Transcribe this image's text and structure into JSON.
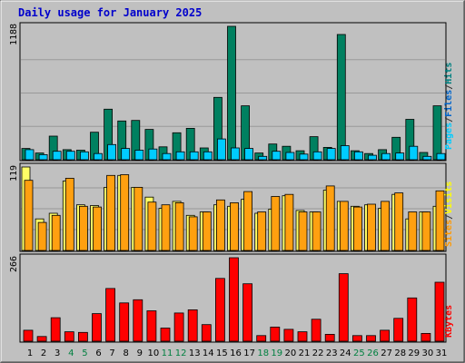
{
  "chart_data": [
    {
      "type": "bar",
      "title": "Daily usage for January 2025",
      "categories": [
        "1",
        "2",
        "3",
        "4",
        "5",
        "6",
        "7",
        "8",
        "9",
        "10",
        "11",
        "12",
        "13",
        "14",
        "15",
        "16",
        "17",
        "18",
        "19",
        "20",
        "21",
        "22",
        "23",
        "24",
        "25",
        "26",
        "27",
        "28",
        "29",
        "30",
        "31"
      ],
      "weekend_days": [
        "4",
        "5",
        "11",
        "12",
        "18",
        "19",
        "25",
        "26"
      ],
      "ymax_label": "1188",
      "ylim": [
        0,
        1188
      ],
      "grid": true,
      "legend_labels": [
        "Pages",
        "/",
        "Files",
        "/",
        "Hits"
      ],
      "legend_colors": [
        "#00ccff",
        "#333333",
        "#0066cc",
        "#333333",
        "#008080"
      ],
      "series": [
        {
          "name": "Hits",
          "color": "#008060",
          "values": [
            100,
            60,
            210,
            90,
            85,
            245,
            450,
            345,
            350,
            270,
            115,
            240,
            280,
            105,
            555,
            1188,
            480,
            60,
            140,
            120,
            80,
            205,
            110,
            1115,
            80,
            55,
            90,
            200,
            360,
            65,
            480
          ]
        },
        {
          "name": "Files",
          "color": "#66ccff",
          "values": [
            0,
            0,
            0,
            0,
            0,
            0,
            0,
            0,
            0,
            0,
            0,
            0,
            0,
            0,
            0,
            0,
            0,
            0,
            0,
            0,
            0,
            0,
            0,
            0,
            0,
            0,
            0,
            0,
            0,
            0,
            0
          ]
        },
        {
          "name": "Pages",
          "color": "#00ccff",
          "values": [
            90,
            45,
            75,
            75,
            70,
            55,
            135,
            100,
            85,
            95,
            55,
            70,
            70,
            70,
            185,
            105,
            100,
            30,
            75,
            65,
            50,
            70,
            100,
            125,
            70,
            40,
            55,
            60,
            120,
            30,
            55
          ]
        }
      ]
    },
    {
      "type": "bar",
      "ymax_label": "119",
      "ylim": [
        0,
        119
      ],
      "grid": true,
      "legend_labels": [
        "Sites",
        "/",
        "Visits"
      ],
      "legend_colors": [
        "#ff9900",
        "#333333",
        "#ffff00"
      ],
      "series": [
        {
          "name": "Visits",
          "color": "#ffff66",
          "values": [
            119,
            45,
            53,
            99,
            65,
            64,
            90,
            107,
            90,
            76,
            60,
            70,
            50,
            55,
            65,
            63,
            73,
            53,
            59,
            78,
            57,
            55,
            86,
            70,
            63,
            65,
            60,
            80,
            45,
            55,
            63
          ]
        },
        {
          "name": "Sites",
          "color": "#ffa010",
          "values": [
            100,
            40,
            50,
            103,
            63,
            62,
            107,
            108,
            90,
            69,
            65,
            68,
            48,
            55,
            72,
            68,
            84,
            55,
            77,
            80,
            55,
            55,
            92,
            70,
            62,
            66,
            70,
            82,
            55,
            55,
            85
          ]
        }
      ]
    },
    {
      "type": "bar",
      "ymax_label": "266",
      "ylim": [
        0,
        266
      ],
      "grid": false,
      "legend_labels": [
        "KBytes"
      ],
      "legend_colors": [
        "#ff0000"
      ],
      "series": [
        {
          "name": "KBytes",
          "color": "#ff0000",
          "values": [
            35,
            15,
            75,
            30,
            28,
            88,
            168,
            122,
            132,
            97,
            42,
            90,
            100,
            53,
            200,
            266,
            183,
            18,
            45,
            38,
            30,
            70,
            22,
            215,
            18,
            18,
            35,
            73,
            138,
            25,
            188
          ]
        }
      ]
    }
  ]
}
